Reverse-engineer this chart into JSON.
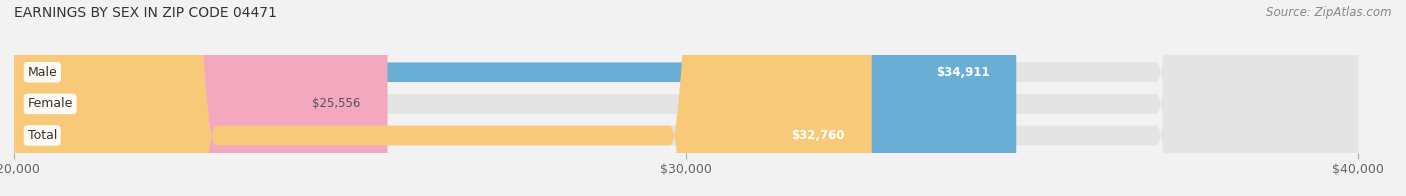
{
  "title": "EARNINGS BY SEX IN ZIP CODE 04471",
  "source": "Source: ZipAtlas.com",
  "categories": [
    "Male",
    "Female",
    "Total"
  ],
  "values": [
    34911,
    25556,
    32760
  ],
  "colors": [
    "#6aaed6",
    "#f4a8c0",
    "#f9c97a"
  ],
  "bar_labels": [
    "$34,911",
    "$25,556",
    "$32,760"
  ],
  "label_colors": [
    "white",
    "#555555",
    "white"
  ],
  "xmin": 20000,
  "xmax": 40000,
  "xticks": [
    20000,
    30000,
    40000
  ],
  "xtick_labels": [
    "$20,000",
    "$30,000",
    "$40,000"
  ],
  "background_color": "#f2f2f2",
  "bar_background_color": "#e4e4e4",
  "title_fontsize": 10,
  "source_fontsize": 8.5,
  "label_fontsize": 8.5,
  "cat_fontsize": 9,
  "tick_fontsize": 9
}
